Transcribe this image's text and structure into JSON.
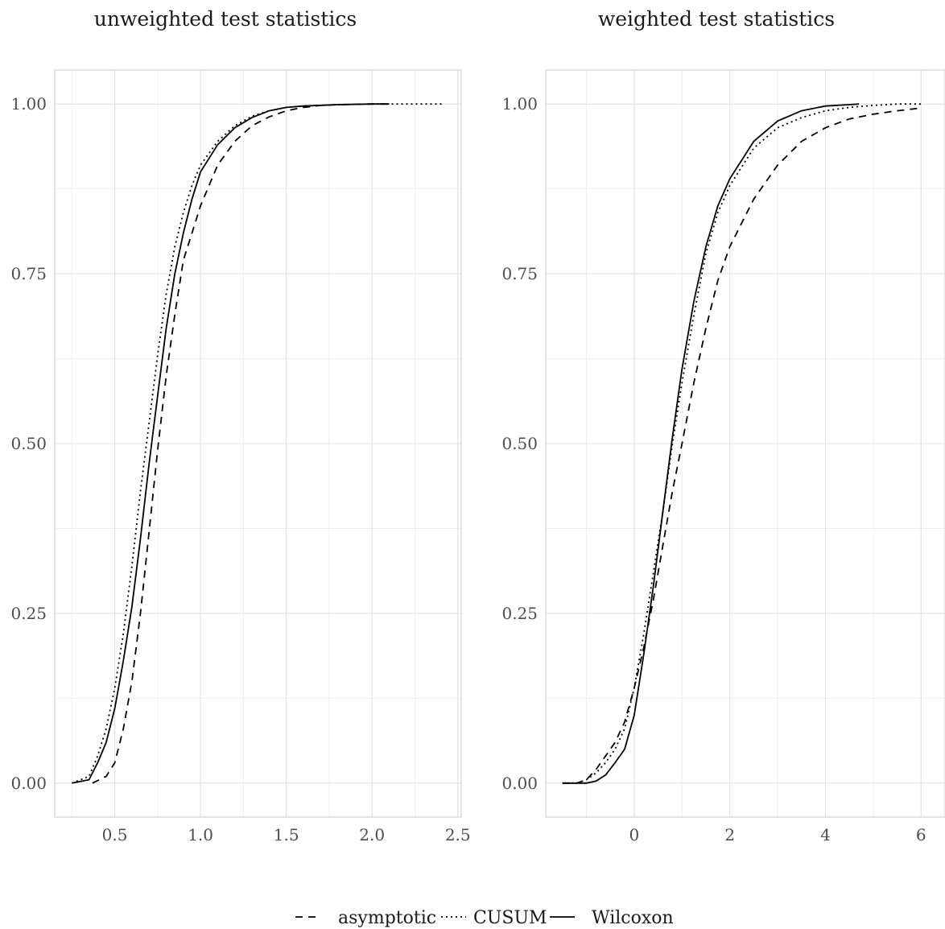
{
  "chart_data": [
    {
      "type": "line",
      "title": "unweighted test statistics",
      "xlabel": "",
      "ylabel": "",
      "xlim": [
        0.15,
        2.52
      ],
      "ylim": [
        -0.05,
        1.05
      ],
      "x_ticks": [
        0.5,
        1.0,
        1.5,
        2.0,
        2.5
      ],
      "x_tick_labels": [
        "0.5",
        "1.0",
        "1.5",
        "2.0",
        "2.5"
      ],
      "y_ticks": [
        0,
        0.25,
        0.5,
        0.75,
        1.0
      ],
      "y_tick_labels": [
        "0.00",
        "0.25",
        "0.50",
        "0.75",
        "1.00"
      ],
      "grid": true,
      "series": [
        {
          "name": "asymptotic",
          "linestyle": "dashed",
          "x": [
            0.37,
            0.45,
            0.5,
            0.55,
            0.6,
            0.65,
            0.7,
            0.75,
            0.8,
            0.85,
            0.9,
            0.95,
            1.0,
            1.1,
            1.2,
            1.3,
            1.4,
            1.5,
            1.6,
            1.7,
            1.8,
            2.0,
            2.1
          ],
          "y": [
            0.0,
            0.01,
            0.03,
            0.08,
            0.15,
            0.25,
            0.37,
            0.49,
            0.6,
            0.69,
            0.77,
            0.81,
            0.85,
            0.91,
            0.945,
            0.968,
            0.981,
            0.99,
            0.995,
            0.998,
            0.999,
            1.0,
            1.0
          ]
        },
        {
          "name": "CUSUM",
          "linestyle": "dotted",
          "x": [
            0.25,
            0.35,
            0.4,
            0.45,
            0.5,
            0.55,
            0.6,
            0.65,
            0.7,
            0.75,
            0.8,
            0.85,
            0.9,
            0.95,
            1.0,
            1.1,
            1.2,
            1.3,
            1.4,
            1.5,
            1.6,
            1.8,
            2.0,
            2.2,
            2.42
          ],
          "y": [
            0.0,
            0.01,
            0.04,
            0.08,
            0.14,
            0.22,
            0.32,
            0.43,
            0.53,
            0.63,
            0.72,
            0.79,
            0.84,
            0.88,
            0.91,
            0.945,
            0.968,
            0.982,
            0.99,
            0.995,
            0.997,
            0.999,
            1.0,
            1.0,
            1.0
          ]
        },
        {
          "name": "Wilcoxon",
          "linestyle": "solid",
          "x": [
            0.25,
            0.35,
            0.4,
            0.45,
            0.5,
            0.55,
            0.6,
            0.65,
            0.7,
            0.75,
            0.8,
            0.85,
            0.9,
            0.95,
            1.0,
            1.1,
            1.2,
            1.3,
            1.4,
            1.5,
            1.6,
            1.8,
            2.0,
            2.1
          ],
          "y": [
            0.0,
            0.005,
            0.03,
            0.06,
            0.11,
            0.18,
            0.26,
            0.36,
            0.47,
            0.57,
            0.67,
            0.75,
            0.81,
            0.86,
            0.9,
            0.94,
            0.965,
            0.98,
            0.99,
            0.995,
            0.997,
            0.999,
            1.0,
            1.0
          ]
        }
      ]
    },
    {
      "type": "line",
      "title": "weighted test statistics",
      "xlabel": "",
      "ylabel": "",
      "xlim": [
        -1.85,
        6.5
      ],
      "ylim": [
        -0.05,
        1.05
      ],
      "x_ticks": [
        0,
        2,
        4,
        6
      ],
      "x_tick_labels": [
        "0",
        "2",
        "4",
        "6"
      ],
      "y_ticks": [
        0,
        0.25,
        0.5,
        0.75,
        1.0
      ],
      "y_tick_labels": [
        "0.00",
        "0.25",
        "0.50",
        "0.75",
        "1.00"
      ],
      "grid": true,
      "series": [
        {
          "name": "asymptotic",
          "linestyle": "dashed",
          "x": [
            -1.5,
            -1.2,
            -1.0,
            -0.8,
            -0.6,
            -0.4,
            -0.2,
            0.0,
            0.2,
            0.4,
            0.6,
            0.8,
            1.0,
            1.25,
            1.5,
            1.75,
            2.0,
            2.5,
            3.0,
            3.5,
            4.0,
            4.5,
            5.0,
            5.5,
            6.0
          ],
          "y": [
            0.0,
            0.0,
            0.005,
            0.02,
            0.04,
            0.06,
            0.09,
            0.14,
            0.2,
            0.27,
            0.35,
            0.43,
            0.5,
            0.59,
            0.67,
            0.74,
            0.79,
            0.86,
            0.91,
            0.945,
            0.965,
            0.978,
            0.985,
            0.99,
            0.994
          ]
        },
        {
          "name": "CUSUM",
          "linestyle": "dotted",
          "x": [
            -1.5,
            -1.2,
            -1.0,
            -0.8,
            -0.6,
            -0.4,
            -0.2,
            0.0,
            0.2,
            0.4,
            0.6,
            0.8,
            1.0,
            1.25,
            1.5,
            1.75,
            2.0,
            2.5,
            3.0,
            3.5,
            4.0,
            4.5,
            5.0,
            5.5,
            6.0
          ],
          "y": [
            0.0,
            0.0,
            0.005,
            0.015,
            0.03,
            0.05,
            0.08,
            0.14,
            0.22,
            0.31,
            0.4,
            0.5,
            0.59,
            0.69,
            0.78,
            0.84,
            0.88,
            0.935,
            0.965,
            0.98,
            0.99,
            0.995,
            0.998,
            1.0,
            1.0
          ]
        },
        {
          "name": "Wilcoxon",
          "linestyle": "solid",
          "x": [
            -1.5,
            -1.2,
            -1.0,
            -0.8,
            -0.6,
            -0.4,
            -0.2,
            0.0,
            0.2,
            0.4,
            0.6,
            0.8,
            1.0,
            1.25,
            1.5,
            1.75,
            2.0,
            2.5,
            3.0,
            3.5,
            4.0,
            4.5,
            4.7
          ],
          "y": [
            0.0,
            0.0,
            0.0,
            0.003,
            0.012,
            0.03,
            0.05,
            0.1,
            0.19,
            0.29,
            0.4,
            0.51,
            0.61,
            0.71,
            0.79,
            0.85,
            0.89,
            0.945,
            0.975,
            0.99,
            0.997,
            0.999,
            1.0
          ]
        }
      ]
    }
  ],
  "legend": {
    "items": [
      {
        "label": "asymptotic",
        "linestyle": "dashed"
      },
      {
        "label": "CUSUM",
        "linestyle": "dotted"
      },
      {
        "label": "Wilcoxon",
        "linestyle": "solid"
      }
    ]
  }
}
